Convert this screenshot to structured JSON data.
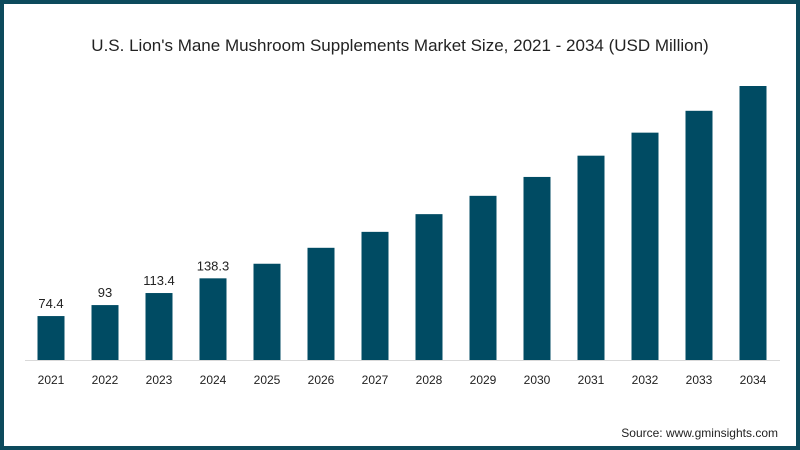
{
  "chart_data": {
    "type": "bar",
    "title": "U.S. Lion's Mane Mushroom Supplements Market  Size, 2021 - 2034 (USD Million)",
    "xlabel": "",
    "ylabel": "",
    "categories": [
      "2021",
      "2022",
      "2023",
      "2024",
      "2025",
      "2026",
      "2027",
      "2028",
      "2029",
      "2030",
      "2031",
      "2032",
      "2033",
      "2034"
    ],
    "values": [
      74.4,
      93,
      113.4,
      138.3,
      163,
      190,
      217,
      247,
      278,
      310,
      346,
      385,
      422,
      464
    ],
    "data_labels": [
      "74.4",
      "93",
      "113.4",
      "138.3",
      "",
      "",
      "",
      "",
      "",
      "",
      "",
      "",
      "",
      ""
    ],
    "ylim": [
      0,
      480
    ],
    "grid": false,
    "bar_color": "#004b63",
    "source": "Source: www.gminsights.com"
  },
  "colors": {
    "frame": "#0d4a5c",
    "bar": "#004b63",
    "axis": "#d9d9d9"
  }
}
